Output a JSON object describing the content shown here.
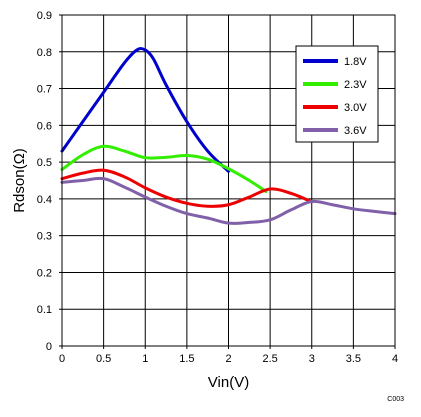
{
  "chart_data": {
    "type": "line",
    "title": "",
    "xlabel": "Vin(V)",
    "ylabel": "Rdson(Ω)",
    "xlim": [
      0,
      4
    ],
    "ylim": [
      0,
      0.9
    ],
    "x_ticks": [
      0,
      0.5,
      1,
      1.5,
      2,
      2.5,
      3,
      3.5,
      4
    ],
    "x_tick_labels": [
      "0",
      "0.5",
      "1",
      "1.5",
      "2",
      "2.5",
      "3",
      "3.5",
      "4"
    ],
    "y_ticks": [
      0,
      0.1,
      0.2,
      0.3,
      0.4,
      0.5,
      0.6,
      0.7,
      0.8,
      0.9
    ],
    "y_tick_labels": [
      "0",
      "0.1",
      "0.2",
      "0.3",
      "0.4",
      "0.5",
      "0.6",
      "0.7",
      "0.8",
      "0.9"
    ],
    "grid": true,
    "legend_position": "top-right",
    "figure_code": "C003",
    "series": [
      {
        "name": "1.8V",
        "color": "#0000cc",
        "x": [
          0,
          0.25,
          0.5,
          0.75,
          0.9,
          1.0,
          1.1,
          1.25,
          1.5,
          1.75,
          2.0
        ],
        "y": [
          0.53,
          0.61,
          0.69,
          0.77,
          0.805,
          0.805,
          0.78,
          0.71,
          0.61,
          0.53,
          0.475
        ]
      },
      {
        "name": "2.3V",
        "color": "#33ee00",
        "x": [
          0,
          0.25,
          0.5,
          0.75,
          1.0,
          1.25,
          1.5,
          1.75,
          2.0,
          2.25,
          2.45
        ],
        "y": [
          0.48,
          0.52,
          0.543,
          0.53,
          0.512,
          0.513,
          0.518,
          0.508,
          0.482,
          0.45,
          0.42
        ]
      },
      {
        "name": "3.0V",
        "color": "#ee0000",
        "x": [
          0,
          0.25,
          0.5,
          0.75,
          1.0,
          1.25,
          1.5,
          1.75,
          2.0,
          2.25,
          2.5,
          2.75,
          3.0
        ],
        "y": [
          0.455,
          0.47,
          0.478,
          0.46,
          0.43,
          0.405,
          0.388,
          0.38,
          0.384,
          0.405,
          0.427,
          0.415,
          0.392
        ]
      },
      {
        "name": "3.6V",
        "color": "#8060a8",
        "x": [
          0,
          0.25,
          0.5,
          0.75,
          1.0,
          1.25,
          1.5,
          1.75,
          2.0,
          2.25,
          2.5,
          2.75,
          3.0,
          3.25,
          3.5,
          3.75,
          4.0
        ],
        "y": [
          0.445,
          0.45,
          0.455,
          0.432,
          0.405,
          0.38,
          0.36,
          0.348,
          0.334,
          0.336,
          0.343,
          0.37,
          0.393,
          0.384,
          0.373,
          0.366,
          0.36
        ]
      }
    ]
  }
}
